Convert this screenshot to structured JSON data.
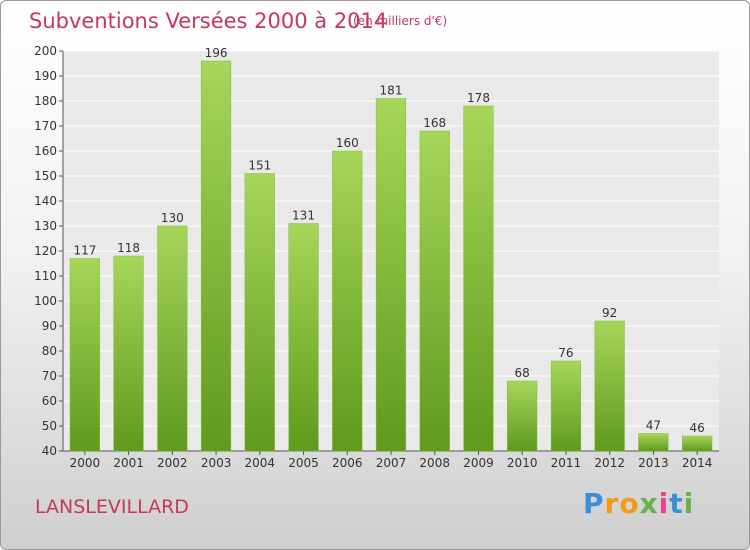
{
  "chart_data": {
    "type": "bar",
    "title": "Subventions Versées 2000 à 2014",
    "subtitle": "(en milliers d'€)",
    "categories": [
      "2000",
      "2001",
      "2002",
      "2003",
      "2004",
      "2005",
      "2006",
      "2007",
      "2008",
      "2009",
      "2010",
      "2011",
      "2012",
      "2013",
      "2014"
    ],
    "values": [
      117,
      118,
      130,
      196,
      151,
      131,
      160,
      181,
      168,
      178,
      68,
      76,
      92,
      47,
      46
    ],
    "ylim": [
      40,
      200
    ],
    "yticks": [
      40,
      50,
      60,
      70,
      80,
      90,
      100,
      110,
      120,
      130,
      140,
      150,
      160,
      170,
      180,
      190,
      200
    ],
    "grid": true,
    "bar_color": "#8cc63f",
    "title_color": "#c6385a"
  },
  "location": "LANSLEVILLARD",
  "logo": {
    "letters": [
      "P",
      "r",
      "o",
      "x",
      "i",
      "t",
      "i"
    ],
    "colors": [
      "#3b8fd6",
      "#f39c12",
      "#f39c12",
      "#6ab04c",
      "#e84393",
      "#3b8fd6",
      "#6ab04c"
    ]
  }
}
